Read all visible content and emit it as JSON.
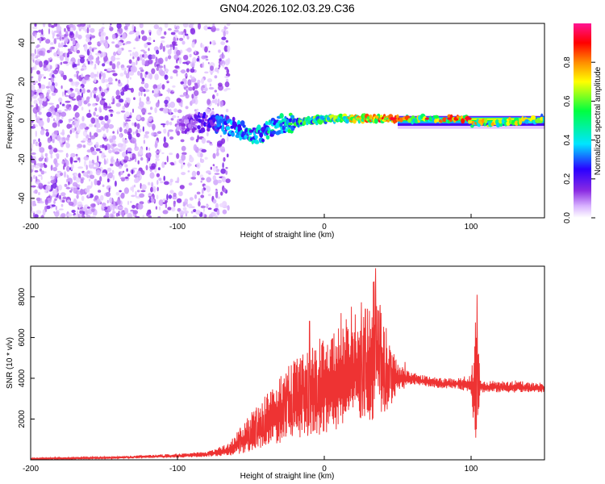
{
  "figure_title": "GN04.2026.102.03.29.C36",
  "chart_data": [
    {
      "type": "heatmap",
      "title": "GN04.2026.102.03.29.C36",
      "xlabel": "Height of straight line (km)",
      "ylabel": "Frequency (Hz)",
      "xlim": [
        -200,
        150
      ],
      "ylim": [
        -50,
        50
      ],
      "x_ticks": [
        -200,
        -100,
        0,
        100
      ],
      "y_ticks": [
        -40,
        -20,
        0,
        20,
        40
      ],
      "colorbar": {
        "label": "Normalized spectral amplitude",
        "range": [
          0,
          1
        ],
        "ticks": [
          0.0,
          0.2,
          0.4,
          0.6,
          0.8
        ],
        "colormap": [
          "#ffffff",
          "#d9b3ff",
          "#8a2be2",
          "#2a00ff",
          "#00e5ff",
          "#00ff40",
          "#ffff00",
          "#ff8c00",
          "#ff0000",
          "#ff1493"
        ]
      },
      "ridge": [
        {
          "x": -200,
          "y": 0,
          "amp": 0.12
        },
        {
          "x": -150,
          "y": -3,
          "amp": 0.15
        },
        {
          "x": -100,
          "y": -3,
          "amp": 0.18
        },
        {
          "x": -80,
          "y": -1,
          "amp": 0.3
        },
        {
          "x": -60,
          "y": -4,
          "amp": 0.42
        },
        {
          "x": -45,
          "y": -8,
          "amp": 0.45
        },
        {
          "x": -30,
          "y": -2,
          "amp": 0.5
        },
        {
          "x": -10,
          "y": 0,
          "amp": 0.55
        },
        {
          "x": 0,
          "y": 1,
          "amp": 0.6
        },
        {
          "x": 20,
          "y": 1,
          "amp": 0.7
        },
        {
          "x": 45,
          "y": 1,
          "amp": 0.85
        },
        {
          "x": 70,
          "y": 1,
          "amp": 0.6
        },
        {
          "x": 98,
          "y": 1,
          "amp": 0.9
        },
        {
          "x": 100,
          "y": -2,
          "amp": 0.7
        },
        {
          "x": 150,
          "y": 1,
          "amp": 0.6
        }
      ]
    },
    {
      "type": "line",
      "xlabel": "Height of straight line (km)",
      "ylabel": "SNR (10 * v/v)",
      "xlim": [
        -200,
        150
      ],
      "ylim": [
        0,
        9500
      ],
      "x_ticks": [
        -200,
        -100,
        0,
        100
      ],
      "y_ticks": [
        2000,
        4000,
        6000,
        8000
      ],
      "series": [
        {
          "name": "SNR",
          "color": "#ee3333",
          "envelope": {
            "x": [
              -200,
              -150,
              -100,
              -80,
              -65,
              -55,
              -45,
              -35,
              -25,
              -15,
              -5,
              0,
              10,
              20,
              30,
              35,
              40,
              45,
              50,
              60,
              70,
              80,
              90,
              100,
              102,
              104,
              106,
              110,
              120,
              130,
              140,
              150
            ],
            "lower": [
              0,
              50,
              100,
              150,
              200,
              300,
              500,
              700,
              900,
              1100,
              1200,
              1300,
              1500,
              1700,
              1900,
              2000,
              2200,
              2500,
              3300,
              3700,
              3600,
              3500,
              3500,
              3300,
              1500,
              600,
              3300,
              3300,
              3300,
              3300,
              3300,
              3300
            ],
            "upper": [
              100,
              150,
              300,
              400,
              800,
              1800,
              2800,
              3800,
              4600,
              5300,
              5800,
              6200,
              6600,
              7200,
              7800,
              9400,
              7000,
              5800,
              4700,
              4300,
              4100,
              4000,
              4000,
              4200,
              5800,
              8100,
              4000,
              3900,
              3900,
              3900,
              3800,
              3800
            ]
          },
          "spikes": [
            {
              "x": -10,
              "y": 6800
            },
            {
              "x": 15,
              "y": 6900
            },
            {
              "x": 28,
              "y": 7400
            },
            {
              "x": 35,
              "y": 9400
            },
            {
              "x": 38,
              "y": 7600
            },
            {
              "x": 55,
              "y": 4800
            },
            {
              "x": 104,
              "y": 8100
            }
          ]
        }
      ]
    }
  ]
}
